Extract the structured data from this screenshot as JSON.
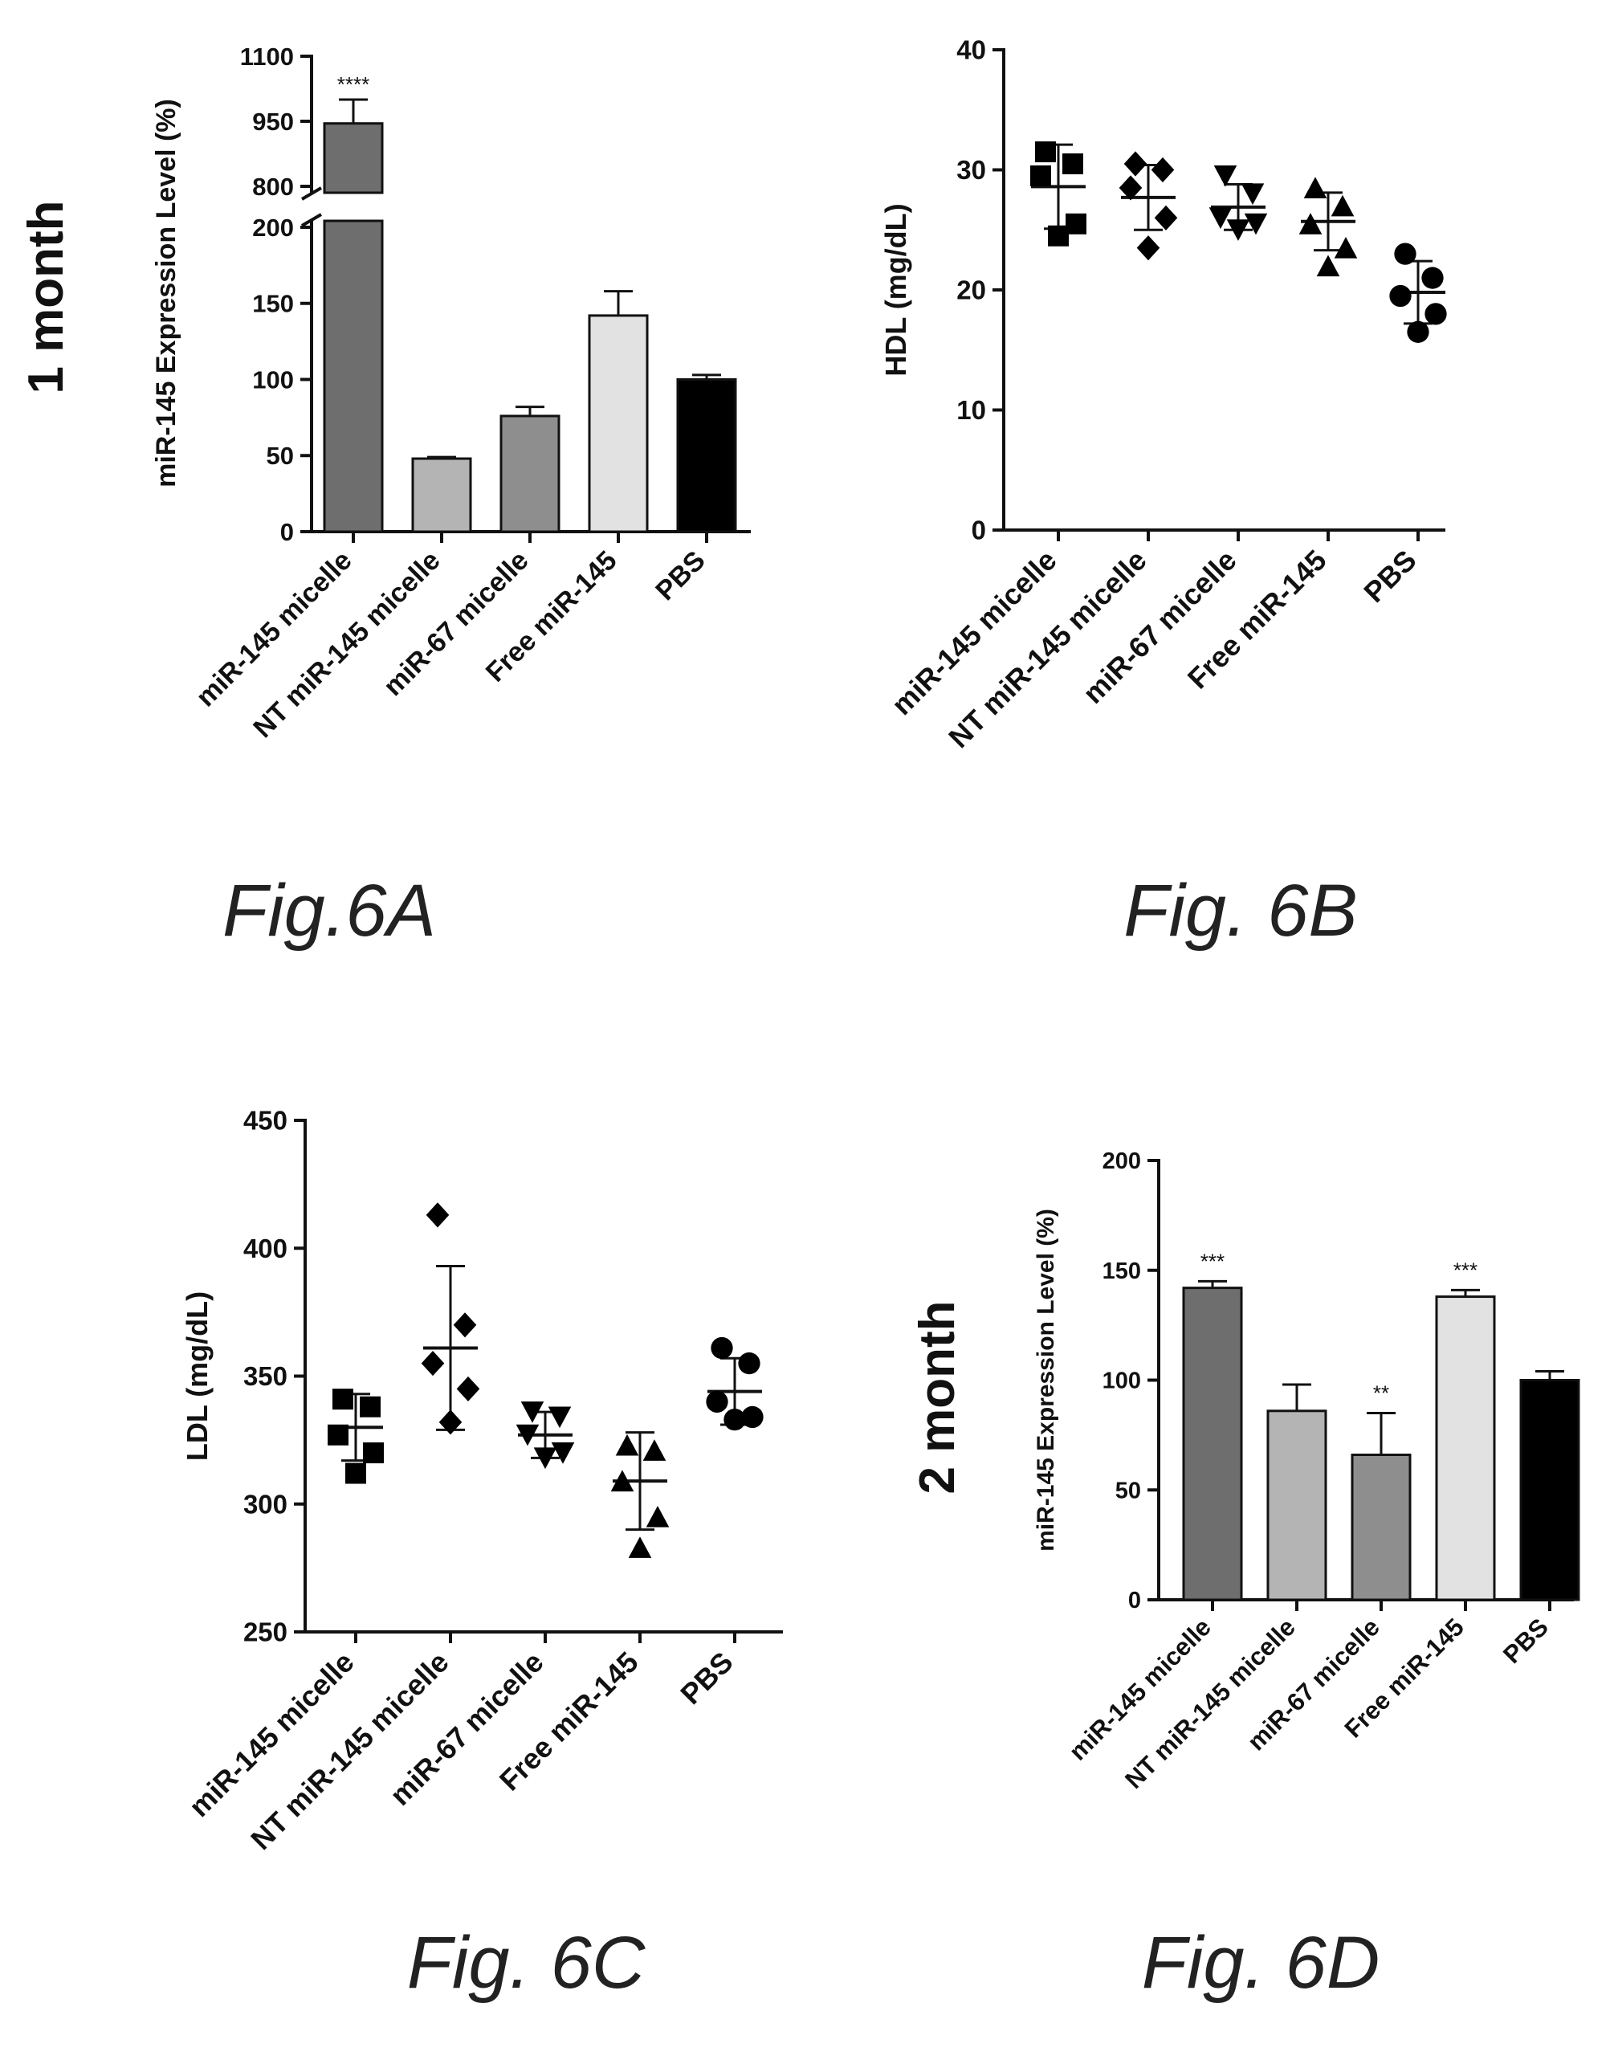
{
  "side_labels": {
    "top": "1 month",
    "bottom": "2 month"
  },
  "captions": {
    "a": "Fig.6A",
    "b": "Fig. 6B",
    "c": "Fig. 6C",
    "d": "Fig. 6D"
  },
  "chart_data": [
    {
      "id": "fig6a",
      "type": "bar",
      "ylabel": "miR-145 Expression Level (%)",
      "categories": [
        "miR-145 micelle",
        "NT miR-145 micelle",
        "miR-67 micelle",
        "Free miR-145",
        "PBS"
      ],
      "values": [
        945,
        48,
        76,
        142,
        100
      ],
      "errors": [
        55,
        1,
        6,
        16,
        3
      ],
      "bar_colors": [
        "#6e6e6e",
        "#b4b4b4",
        "#8e8e8e",
        "#e2e2e2",
        "#000000"
      ],
      "significance": [
        "****",
        "",
        "",
        "",
        ""
      ],
      "axis_break": true,
      "lower_segment": {
        "ylim": [
          0,
          200
        ],
        "ticks": [
          0,
          50,
          100,
          150,
          200
        ]
      },
      "upper_segment": {
        "ylim": [
          800,
          1100
        ],
        "ticks": [
          800,
          950,
          1100
        ]
      }
    },
    {
      "id": "fig6b",
      "type": "scatter",
      "ylabel": "HDL (mg/dL)",
      "ylim": [
        0,
        40
      ],
      "yticks": [
        0,
        10,
        20,
        30,
        40
      ],
      "categories": [
        "miR-145 micelle",
        "NT miR-145 micelle",
        "miR-67 micelle",
        "Free miR-145",
        "PBS"
      ],
      "markers": [
        "square",
        "diamond",
        "triangle-down",
        "triangle-up",
        "circle"
      ],
      "points": [
        [
          31.5,
          30.5,
          29.5,
          25.5,
          24.5
        ],
        [
          30.5,
          30,
          28.5,
          26,
          23.5
        ],
        [
          29.5,
          28,
          26,
          25.5,
          25
        ],
        [
          28.5,
          27,
          25.5,
          23.5,
          22
        ],
        [
          23,
          21,
          19.5,
          18,
          16.5
        ]
      ],
      "mean": [
        28.6,
        27.7,
        26.9,
        25.7,
        19.8
      ],
      "sd": [
        3.5,
        2.7,
        1.9,
        2.4,
        2.6
      ]
    },
    {
      "id": "fig6c",
      "type": "scatter",
      "ylabel": "LDL (mg/dL)",
      "ylim": [
        250,
        450
      ],
      "yticks": [
        250,
        300,
        350,
        400,
        450
      ],
      "categories": [
        "miR-145 micelle",
        "NT miR-145 micelle",
        "miR-67 micelle",
        "Free miR-145",
        "PBS"
      ],
      "markers": [
        "square",
        "diamond",
        "triangle-down",
        "triangle-up",
        "circle"
      ],
      "points": [
        [
          341,
          338,
          327,
          320,
          312
        ],
        [
          413,
          370,
          355,
          345,
          332
        ],
        [
          336,
          334,
          327,
          320,
          318
        ],
        [
          323,
          321,
          309,
          295,
          283
        ],
        [
          361,
          355,
          340,
          334,
          333
        ]
      ],
      "mean": [
        330,
        361,
        327,
        309,
        344
      ],
      "sd": [
        13,
        32,
        9,
        19,
        13
      ]
    },
    {
      "id": "fig6d",
      "type": "bar",
      "ylabel": "miR-145 Expression Level (%)",
      "ylim": [
        0,
        200
      ],
      "yticks": [
        0,
        50,
        100,
        150,
        200
      ],
      "categories": [
        "miR-145 micelle",
        "NT miR-145 micelle",
        "miR-67 micelle",
        "Free miR-145",
        "PBS"
      ],
      "values": [
        142,
        86,
        66,
        138,
        100
      ],
      "errors": [
        3,
        12,
        19,
        3,
        4
      ],
      "bar_colors": [
        "#6e6e6e",
        "#b4b4b4",
        "#8e8e8e",
        "#e2e2e2",
        "#000000"
      ],
      "significance": [
        "***",
        "",
        "**",
        "***",
        ""
      ]
    }
  ]
}
